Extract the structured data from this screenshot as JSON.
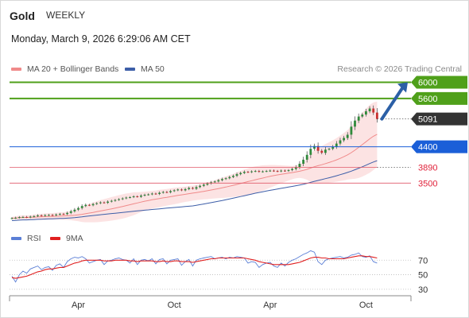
{
  "header": {
    "instrument": "Gold",
    "period": "WEEKLY",
    "datetime": "Monday, March 9, 2026 6:29:06 AM CET",
    "source": "Research © 2026 Trading Central"
  },
  "legend": {
    "price": [
      {
        "label": "MA 20 + Bollinger Bands",
        "color": "#f08a8a"
      },
      {
        "label": "MA 50",
        "color": "#3d5ea8"
      }
    ],
    "rsi": [
      {
        "label": "RSI",
        "color": "#5b7fd6"
      },
      {
        "label": "9MA",
        "color": "#e02020"
      }
    ]
  },
  "colors": {
    "candle_up": "#2f8a3b",
    "candle_down": "#c93030",
    "bollinger_fill": "#fbdada",
    "resistance": "#4fa01a",
    "pivot": "#1b5fd8",
    "support": "#e05a6a",
    "last_price_tag": "#333333",
    "arrow": "#2b5fa6"
  },
  "chart_data": [
    {
      "type": "candlestick",
      "title": "Gold",
      "timeframe": "weekly",
      "x_tick_labels": [
        "Apr",
        "Oct",
        "Apr",
        "Oct"
      ],
      "x_tick_positions": [
        18,
        44,
        70,
        96
      ],
      "ylim": [
        2500,
        6050
      ],
      "closes": [
        2630,
        2640,
        2655,
        2660,
        2650,
        2668,
        2680,
        2700,
        2690,
        2705,
        2710,
        2700,
        2720,
        2735,
        2730,
        2760,
        2800,
        2840,
        2880,
        2930,
        2960,
        2950,
        2980,
        3000,
        3020,
        3010,
        3040,
        3060,
        3080,
        3100,
        3120,
        3140,
        3150,
        3170,
        3160,
        3190,
        3210,
        3220,
        3240,
        3230,
        3260,
        3280,
        3270,
        3300,
        3320,
        3340,
        3320,
        3350,
        3380,
        3360,
        3400,
        3430,
        3460,
        3490,
        3520,
        3540,
        3570,
        3600,
        3620,
        3650,
        3680,
        3720,
        3750,
        3780,
        3770,
        3790,
        3800,
        3780,
        3790,
        3800,
        3810,
        3800,
        3790,
        3810,
        3800,
        3820,
        3850,
        3900,
        3980,
        4080,
        4200,
        4350,
        4420,
        4300,
        4250,
        4330,
        4350,
        4400,
        4480,
        4560,
        4620,
        4700,
        4900,
        5050,
        5150,
        5200,
        5280,
        5350,
        5250,
        5091
      ],
      "key_levels": [
        {
          "label": "6000",
          "value": 6000,
          "kind": "resistance"
        },
        {
          "label": "5600",
          "value": 5600,
          "kind": "resistance"
        },
        {
          "label": "5091",
          "value": 5091,
          "kind": "last"
        },
        {
          "label": "4400",
          "value": 4400,
          "kind": "pivot"
        },
        {
          "label": "3890",
          "value": 3890,
          "kind": "support"
        },
        {
          "label": "3500",
          "value": 3500,
          "kind": "support"
        }
      ],
      "projection": {
        "from": 5091,
        "to": 6000,
        "direction": "up"
      }
    },
    {
      "type": "line",
      "title": "RSI",
      "ylim": [
        20,
        90
      ],
      "y_tick_labels": [
        "70",
        "50",
        "30"
      ],
      "y_ticks": [
        70,
        50,
        30
      ],
      "series": [
        {
          "name": "RSI",
          "values": [
            48,
            40,
            50,
            55,
            52,
            58,
            60,
            62,
            57,
            60,
            61,
            56,
            63,
            65,
            60,
            68,
            72,
            74,
            73,
            75,
            72,
            66,
            68,
            70,
            71,
            64,
            69,
            70,
            72,
            73,
            71,
            70,
            66,
            72,
            64,
            70,
            71,
            69,
            72,
            65,
            71,
            72,
            65,
            70,
            71,
            72,
            63,
            68,
            71,
            62,
            70,
            72,
            73,
            74,
            75,
            72,
            73,
            74,
            72,
            74,
            73,
            75,
            74,
            73,
            66,
            68,
            67,
            60,
            64,
            66,
            67,
            62,
            60,
            66,
            62,
            67,
            70,
            72,
            75,
            78,
            80,
            83,
            81,
            68,
            64,
            70,
            72,
            73,
            74,
            75,
            73,
            74,
            77,
            78,
            80,
            75,
            74,
            76,
            68,
            66
          ]
        },
        {
          "name": "9MA",
          "values": [
            46,
            45,
            46,
            47,
            48,
            50,
            52,
            54,
            55,
            57,
            58,
            58,
            59,
            60,
            60,
            62,
            64,
            66,
            67,
            69,
            70,
            70,
            70,
            70,
            70,
            69,
            69,
            69,
            70,
            70,
            70,
            70,
            69,
            69,
            68,
            69,
            69,
            69,
            69,
            68,
            68,
            69,
            68,
            68,
            69,
            69,
            68,
            68,
            68,
            67,
            68,
            69,
            70,
            71,
            72,
            72,
            73,
            73,
            73,
            73,
            73,
            73,
            73,
            73,
            72,
            71,
            70,
            68,
            67,
            66,
            65,
            64,
            64,
            64,
            64,
            64,
            65,
            66,
            67,
            69,
            71,
            73,
            74,
            74,
            73,
            73,
            72,
            72,
            72,
            72,
            72,
            73,
            74,
            75,
            76,
            76,
            75,
            75,
            74,
            73
          ]
        }
      ]
    }
  ]
}
